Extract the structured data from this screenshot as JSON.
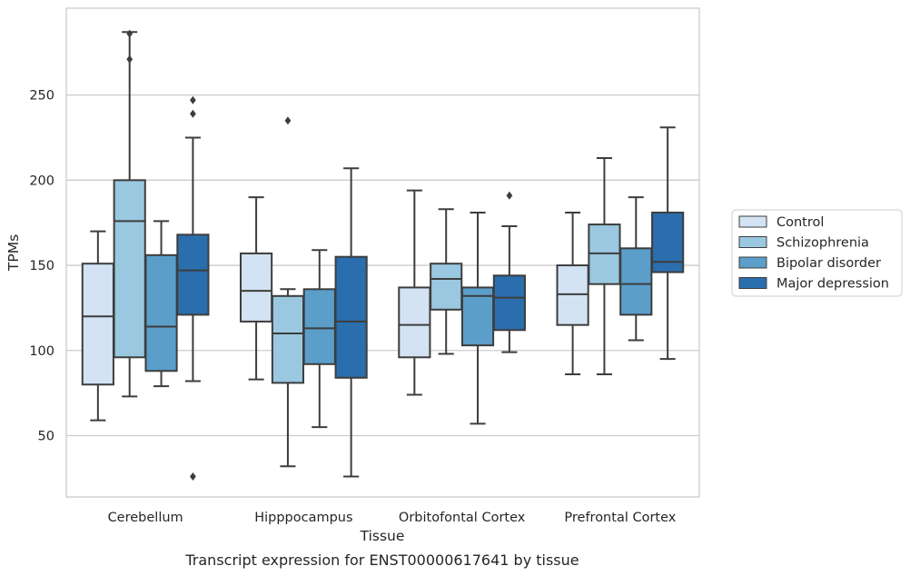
{
  "caption": "Transcript expression for ENST00000617641 by tissue",
  "chart_data": {
    "type": "box",
    "title": "",
    "xlabel": "Tissue",
    "ylabel": "TPMs",
    "ylim": [
      14,
      301
    ],
    "yticks": [
      50,
      100,
      150,
      200,
      250
    ],
    "grid": "horizontal",
    "legend_position": "right",
    "categories": [
      "Cerebellum",
      "Hipppocampus",
      "Orbitofontal Cortex",
      "Prefrontal Cortex"
    ],
    "series": [
      {
        "name": "Control",
        "color": "#d3e3f3",
        "boxes": [
          {
            "whisker_low": 59,
            "q1": 80,
            "median": 120,
            "q3": 151,
            "whisker_high": 170,
            "outliers": []
          },
          {
            "whisker_low": 83,
            "q1": 117,
            "median": 135,
            "q3": 157,
            "whisker_high": 190,
            "outliers": []
          },
          {
            "whisker_low": 74,
            "q1": 96,
            "median": 115,
            "q3": 137,
            "whisker_high": 194,
            "outliers": []
          },
          {
            "whisker_low": 86,
            "q1": 115,
            "median": 133,
            "q3": 150,
            "whisker_high": 181,
            "outliers": []
          }
        ]
      },
      {
        "name": "Schizophrenia",
        "color": "#9ac8e0",
        "boxes": [
          {
            "whisker_low": 73,
            "q1": 96,
            "median": 176,
            "q3": 200,
            "whisker_high": 287,
            "outliers": []
          },
          {
            "whisker_low": 32,
            "q1": 81,
            "median": 110,
            "q3": 132,
            "whisker_high": 136,
            "outliers": [
              235
            ]
          },
          {
            "whisker_low": 98,
            "q1": 124,
            "median": 142,
            "q3": 151,
            "whisker_high": 183,
            "outliers": []
          },
          {
            "whisker_low": 86,
            "q1": 139,
            "median": 157,
            "q3": 174,
            "whisker_high": 213,
            "outliers": []
          }
        ]
      },
      {
        "name": "Bipolar disorder",
        "color": "#5a9ec9",
        "boxes": [
          {
            "whisker_low": 79,
            "q1": 88,
            "median": 114,
            "q3": 156,
            "whisker_high": 176,
            "outliers": []
          },
          {
            "whisker_low": 55,
            "q1": 92,
            "median": 113,
            "q3": 136,
            "whisker_high": 159,
            "outliers": []
          },
          {
            "whisker_low": 57,
            "q1": 103,
            "median": 132,
            "q3": 137,
            "whisker_high": 181,
            "outliers": []
          },
          {
            "whisker_low": 106,
            "q1": 121,
            "median": 139,
            "q3": 160,
            "whisker_high": 190,
            "outliers": []
          }
        ]
      },
      {
        "name": "Major depression",
        "color": "#2a6ead",
        "boxes": [
          {
            "whisker_low": 82,
            "q1": 121,
            "median": 147,
            "q3": 168,
            "whisker_high": 225,
            "outliers": [
              247,
              239,
              26
            ]
          },
          {
            "whisker_low": 26,
            "q1": 84,
            "median": 117,
            "q3": 155,
            "whisker_high": 207,
            "outliers": []
          },
          {
            "whisker_low": 99,
            "q1": 112,
            "median": 131,
            "q3": 144,
            "whisker_high": 173,
            "outliers": [
              191
            ]
          },
          {
            "whisker_low": 95,
            "q1": 146,
            "median": 152,
            "q3": 181,
            "whisker_high": 231,
            "outliers": []
          }
        ]
      }
    ]
  },
  "extra_outliers": [
    {
      "category": 0,
      "series": 0,
      "values": []
    },
    {
      "category": 0,
      "series": 1,
      "values": [
        286,
        271
      ]
    }
  ]
}
